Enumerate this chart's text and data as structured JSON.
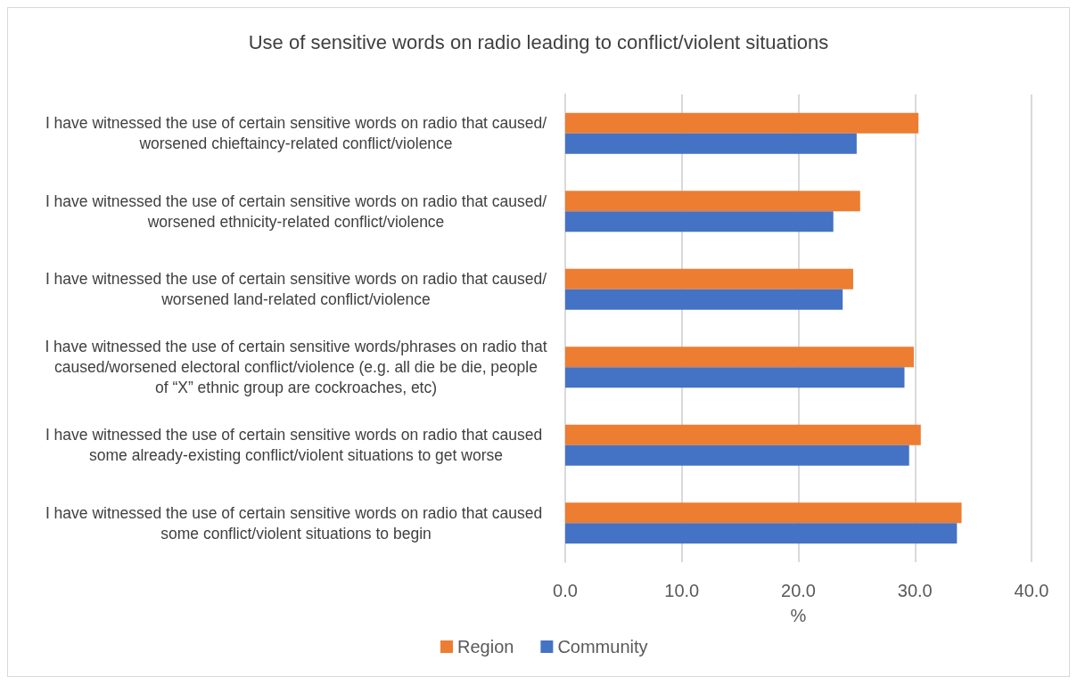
{
  "chart_data": {
    "type": "bar",
    "orientation": "horizontal",
    "title": "Use of sensitive words on radio leading to conflict/violent situations",
    "xlabel": "%",
    "categories": [
      "I have witnessed the use of certain sensitive words on radio that caused/worsened chieftaincy-related conflict/violence",
      "I have witnessed the use of certain sensitive words on radio that caused/worsened ethnicity-related conflict/violence",
      "I have witnessed the use of certain sensitive words on radio that caused/worsened land-related conflict/violence",
      "I have witnessed the use of certain sensitive words/phrases on radio that caused/worsened electoral conflict/violence (e.g. all die be die, people of “X” ethnic group are cockroaches, etc)",
      "I have witnessed the use of certain sensitive words on radio that caused some already-existing conflict/violent situations to get worse",
      "I have witnessed the use of certain sensitive words on radio that caused some conflict/violent situations to begin"
    ],
    "series": [
      {
        "name": "Region",
        "color": "#ed7d31",
        "values": [
          30.3,
          25.3,
          24.7,
          29.9,
          30.5,
          34.0
        ]
      },
      {
        "name": "Community",
        "color": "#4472c4",
        "values": [
          25.0,
          23.0,
          23.8,
          29.1,
          29.5,
          33.6
        ]
      }
    ],
    "xlim": [
      0,
      40
    ],
    "xticks": [
      {
        "value": 0,
        "label": "0.0"
      },
      {
        "value": 10,
        "label": "10.0"
      },
      {
        "value": 20,
        "label": "20.0"
      },
      {
        "value": 30,
        "label": "30.0"
      },
      {
        "value": 40,
        "label": "40.0"
      }
    ],
    "grid": "x",
    "legend": "bottom left"
  }
}
